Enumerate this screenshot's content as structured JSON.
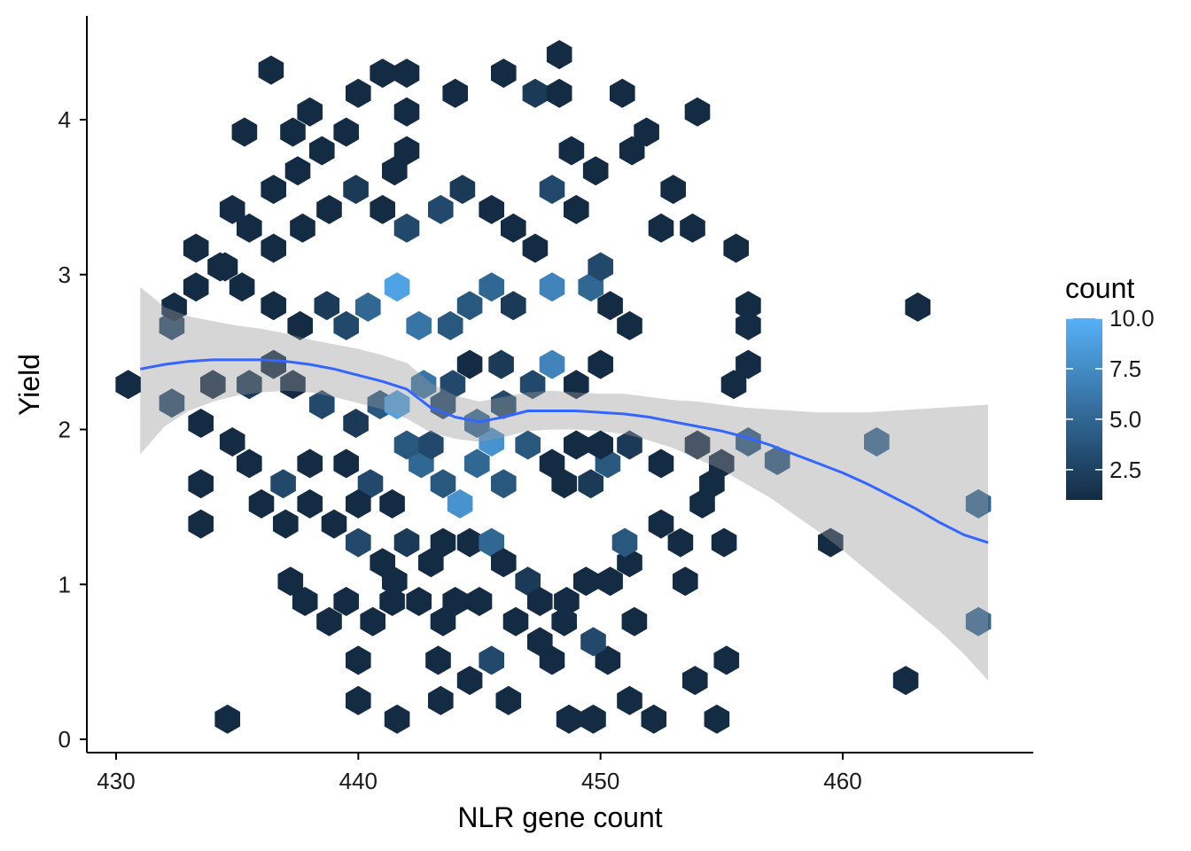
{
  "chart_data": {
    "type": "hexbin",
    "title": "",
    "xlabel": "NLR gene count",
    "ylabel": "Yield",
    "xlim": [
      428.8,
      468.1
    ],
    "ylim": [
      -0.07,
      4.67
    ],
    "x_ticks": [
      430,
      440,
      450,
      460
    ],
    "y_ticks": [
      0,
      1,
      2,
      3,
      4
    ],
    "x_tick_labels": [
      "430",
      "440",
      "450",
      "460"
    ],
    "y_tick_labels": [
      "0",
      "1",
      "2",
      "3",
      "4"
    ],
    "grid": false,
    "legend": {
      "title": "count",
      "position": "right",
      "range": [
        1,
        10
      ],
      "ticks": [
        2.5,
        5.0,
        7.5,
        10.0
      ],
      "tick_labels": [
        "2.5",
        "5.0",
        "7.5",
        "10.0"
      ],
      "color_low": "#132B43",
      "color_high": "#56B1F7"
    },
    "hex_bins": [
      [
        430.5,
        2.29,
        1
      ],
      [
        432.3,
        2.67,
        3
      ],
      [
        432.3,
        2.17,
        3
      ],
      [
        434.6,
        0.13,
        1
      ],
      [
        433.5,
        1.39,
        1
      ],
      [
        433.5,
        1.65,
        1
      ],
      [
        433.3,
        3.17,
        1
      ],
      [
        434.8,
        3.42,
        1
      ],
      [
        435.3,
        3.92,
        1
      ],
      [
        436.4,
        4.32,
        1
      ],
      [
        437.3,
        3.92,
        1
      ],
      [
        438.0,
        4.05,
        1
      ],
      [
        440.0,
        4.17,
        1
      ],
      [
        441.0,
        4.3,
        1
      ],
      [
        442.0,
        4.3,
        1
      ],
      [
        442.0,
        4.05,
        1
      ],
      [
        444.0,
        4.17,
        1
      ],
      [
        446.0,
        4.3,
        1
      ],
      [
        448.3,
        4.42,
        1
      ],
      [
        447.3,
        4.17,
        2
      ],
      [
        448.3,
        4.17,
        1
      ],
      [
        450.9,
        4.17,
        1
      ],
      [
        454.0,
        4.05,
        1
      ],
      [
        451.9,
        3.92,
        1
      ],
      [
        451.3,
        3.8,
        1
      ],
      [
        453.0,
        3.55,
        1
      ],
      [
        452.5,
        3.3,
        1
      ],
      [
        453.8,
        3.3,
        1
      ],
      [
        455.6,
        3.17,
        1
      ],
      [
        456.1,
        2.8,
        1
      ],
      [
        456.1,
        2.67,
        1
      ],
      [
        463.1,
        2.79,
        1
      ],
      [
        456.1,
        2.42,
        1
      ],
      [
        455.5,
        2.29,
        1
      ],
      [
        456.1,
        1.92,
        4
      ],
      [
        457.3,
        1.8,
        4
      ],
      [
        461.4,
        1.92,
        5
      ],
      [
        459.5,
        1.27,
        1
      ],
      [
        465.6,
        1.52,
        5
      ],
      [
        465.6,
        0.76,
        5
      ],
      [
        462.6,
        0.38,
        1
      ],
      [
        455.2,
        0.51,
        1
      ],
      [
        453.9,
        0.38,
        1
      ],
      [
        454.8,
        0.13,
        1
      ],
      [
        452.2,
        0.13,
        1
      ],
      [
        451.2,
        0.25,
        1
      ],
      [
        449.7,
        0.13,
        1
      ],
      [
        448.7,
        0.13,
        1
      ],
      [
        450.3,
        0.51,
        1
      ],
      [
        448.0,
        0.51,
        1
      ],
      [
        446.2,
        0.25,
        1
      ],
      [
        443.4,
        0.25,
        1
      ],
      [
        441.6,
        0.13,
        1
      ],
      [
        440.0,
        0.25,
        1
      ],
      [
        440.0,
        0.51,
        1
      ],
      [
        443.3,
        0.51,
        1
      ],
      [
        443.5,
        0.76,
        1
      ],
      [
        444.6,
        0.38,
        1
      ],
      [
        445.5,
        0.51,
        3
      ],
      [
        437.2,
        1.02,
        1
      ],
      [
        437.8,
        0.89,
        1
      ],
      [
        438.8,
        0.76,
        1
      ],
      [
        439.5,
        0.89,
        1
      ],
      [
        440.6,
        0.76,
        1
      ],
      [
        441.4,
        0.89,
        1
      ],
      [
        440.0,
        1.27,
        3
      ],
      [
        441.0,
        1.14,
        1
      ],
      [
        442.0,
        1.27,
        2
      ],
      [
        443.5,
        1.27,
        1
      ],
      [
        444.6,
        1.27,
        1
      ],
      [
        445.5,
        1.27,
        5
      ],
      [
        446.0,
        1.14,
        1
      ],
      [
        447.0,
        1.02,
        2
      ],
      [
        447.5,
        0.89,
        1
      ],
      [
        448.6,
        0.89,
        1
      ],
      [
        449.4,
        1.02,
        1
      ],
      [
        450.4,
        1.02,
        1
      ],
      [
        451.4,
        0.76,
        1
      ],
      [
        449.7,
        0.63,
        3
      ],
      [
        451.2,
        1.14,
        1
      ],
      [
        451.0,
        1.27,
        4
      ],
      [
        452.5,
        1.39,
        1
      ],
      [
        453.3,
        1.27,
        1
      ],
      [
        455.1,
        1.27,
        1
      ],
      [
        453.5,
        1.02,
        1
      ],
      [
        454.2,
        1.52,
        1
      ],
      [
        454.6,
        1.65,
        1
      ],
      [
        455.0,
        1.78,
        1
      ],
      [
        454.0,
        1.9,
        1
      ],
      [
        452.5,
        1.78,
        1
      ],
      [
        451.2,
        1.9,
        2
      ],
      [
        450.3,
        1.78,
        4
      ],
      [
        449.6,
        1.65,
        2
      ],
      [
        448.5,
        1.65,
        1
      ],
      [
        446.0,
        2.16,
        3
      ],
      [
        445.5,
        1.92,
        8
      ],
      [
        446.0,
        1.65,
        4
      ],
      [
        444.9,
        1.78,
        5
      ],
      [
        444.2,
        1.52,
        8
      ],
      [
        443.5,
        1.65,
        4
      ],
      [
        444.9,
        2.04,
        5
      ],
      [
        443.5,
        2.16,
        3
      ],
      [
        442.6,
        1.78,
        5
      ],
      [
        441.4,
        1.52,
        1
      ],
      [
        440.5,
        1.65,
        3
      ],
      [
        439.5,
        1.78,
        1
      ],
      [
        438.0,
        1.78,
        1
      ],
      [
        436.9,
        1.65,
        3
      ],
      [
        436.0,
        1.52,
        1
      ],
      [
        435.5,
        1.78,
        1
      ],
      [
        434.8,
        1.92,
        1
      ],
      [
        433.5,
        2.04,
        1
      ],
      [
        434.0,
        2.29,
        1
      ],
      [
        435.5,
        2.29,
        2
      ],
      [
        436.5,
        2.42,
        1
      ],
      [
        437.3,
        2.29,
        1
      ],
      [
        438.5,
        2.16,
        3
      ],
      [
        439.9,
        2.04,
        2
      ],
      [
        440.9,
        2.16,
        4
      ],
      [
        441.6,
        2.16,
        9
      ],
      [
        442.7,
        2.29,
        6
      ],
      [
        443.9,
        2.29,
        3
      ],
      [
        444.6,
        2.42,
        1
      ],
      [
        445.9,
        2.42,
        2
      ],
      [
        447.2,
        2.29,
        3
      ],
      [
        448.0,
        2.42,
        7
      ],
      [
        449.0,
        2.29,
        1
      ],
      [
        450.0,
        2.42,
        1
      ],
      [
        451.2,
        2.67,
        1
      ],
      [
        450.4,
        2.8,
        1
      ],
      [
        449.6,
        2.92,
        5
      ],
      [
        448.0,
        2.92,
        7
      ],
      [
        446.4,
        2.8,
        2
      ],
      [
        445.5,
        2.92,
        5
      ],
      [
        444.6,
        2.8,
        4
      ],
      [
        443.8,
        2.67,
        4
      ],
      [
        442.5,
        2.67,
        6
      ],
      [
        441.6,
        2.92,
        9
      ],
      [
        440.4,
        2.79,
        5
      ],
      [
        439.5,
        2.67,
        3
      ],
      [
        438.7,
        2.8,
        2
      ],
      [
        437.6,
        2.67,
        1
      ],
      [
        436.5,
        2.8,
        1
      ],
      [
        435.2,
        2.92,
        1
      ],
      [
        434.3,
        3.05,
        1
      ],
      [
        433.3,
        2.92,
        1
      ],
      [
        432.4,
        2.79,
        1
      ],
      [
        436.5,
        3.17,
        1
      ],
      [
        437.7,
        3.3,
        1
      ],
      [
        438.8,
        3.42,
        1
      ],
      [
        439.9,
        3.55,
        2
      ],
      [
        441.0,
        3.42,
        1
      ],
      [
        442.0,
        3.3,
        3
      ],
      [
        443.4,
        3.42,
        3
      ],
      [
        444.3,
        3.55,
        2
      ],
      [
        445.5,
        3.42,
        1
      ],
      [
        446.4,
        3.3,
        1
      ],
      [
        447.3,
        3.17,
        1
      ],
      [
        448.0,
        3.55,
        3
      ],
      [
        449.0,
        3.42,
        1
      ],
      [
        450.0,
        3.05,
        3
      ],
      [
        448.8,
        3.8,
        1
      ],
      [
        449.8,
        3.67,
        1
      ],
      [
        442.0,
        3.8,
        1
      ],
      [
        441.5,
        3.67,
        1
      ],
      [
        439.5,
        3.92,
        1
      ],
      [
        438.5,
        3.8,
        1
      ],
      [
        437.5,
        3.67,
        1
      ],
      [
        436.5,
        3.55,
        1
      ],
      [
        435.5,
        3.3,
        1
      ],
      [
        434.5,
        3.05,
        1
      ],
      [
        441.5,
        1.02,
        1
      ],
      [
        442.5,
        0.89,
        1
      ],
      [
        443.0,
        1.14,
        1
      ],
      [
        444.0,
        0.89,
        1
      ],
      [
        445.0,
        0.89,
        1
      ],
      [
        446.5,
        0.76,
        1
      ],
      [
        447.5,
        0.63,
        1
      ],
      [
        448.5,
        0.76,
        1
      ],
      [
        440.0,
        1.52,
        1
      ],
      [
        439.0,
        1.39,
        1
      ],
      [
        438.0,
        1.52,
        1
      ],
      [
        437.0,
        1.39,
        1
      ],
      [
        442.0,
        1.9,
        4
      ],
      [
        443.0,
        1.9,
        3
      ],
      [
        447.0,
        1.9,
        4
      ],
      [
        448.0,
        1.78,
        1
      ],
      [
        449.0,
        1.9,
        1
      ],
      [
        450.0,
        1.9,
        1
      ]
    ],
    "smooth_line": {
      "method": "loess",
      "color": "#3366FF",
      "x": [
        431,
        432,
        433,
        434,
        435,
        436,
        437,
        438,
        439,
        440,
        441,
        442,
        443,
        444,
        445,
        446,
        447,
        448,
        449,
        450,
        451,
        452,
        453,
        454,
        455,
        456,
        457,
        458,
        459,
        460,
        461,
        462,
        463,
        464,
        465,
        466
      ],
      "y": [
        2.39,
        2.42,
        2.44,
        2.45,
        2.45,
        2.45,
        2.44,
        2.42,
        2.39,
        2.35,
        2.31,
        2.26,
        2.14,
        2.08,
        2.05,
        2.08,
        2.12,
        2.12,
        2.12,
        2.11,
        2.1,
        2.08,
        2.05,
        2.02,
        1.99,
        1.95,
        1.9,
        1.84,
        1.78,
        1.72,
        1.65,
        1.57,
        1.49,
        1.4,
        1.32,
        1.27
      ],
      "ci_lower": [
        1.84,
        2.02,
        2.12,
        2.18,
        2.22,
        2.24,
        2.25,
        2.24,
        2.21,
        2.17,
        2.13,
        2.07,
        1.98,
        1.94,
        1.92,
        1.95,
        1.99,
        2.0,
        2.0,
        1.99,
        1.97,
        1.93,
        1.88,
        1.81,
        1.74,
        1.65,
        1.56,
        1.45,
        1.34,
        1.22,
        1.09,
        0.96,
        0.83,
        0.7,
        0.55,
        0.38
      ],
      "ci_upper": [
        2.92,
        2.79,
        2.73,
        2.7,
        2.67,
        2.65,
        2.62,
        2.58,
        2.55,
        2.52,
        2.48,
        2.43,
        2.3,
        2.22,
        2.18,
        2.21,
        2.24,
        2.25,
        2.24,
        2.23,
        2.23,
        2.21,
        2.19,
        2.18,
        2.16,
        2.14,
        2.13,
        2.12,
        2.11,
        2.11,
        2.11,
        2.12,
        2.13,
        2.14,
        2.15,
        2.16
      ]
    }
  }
}
